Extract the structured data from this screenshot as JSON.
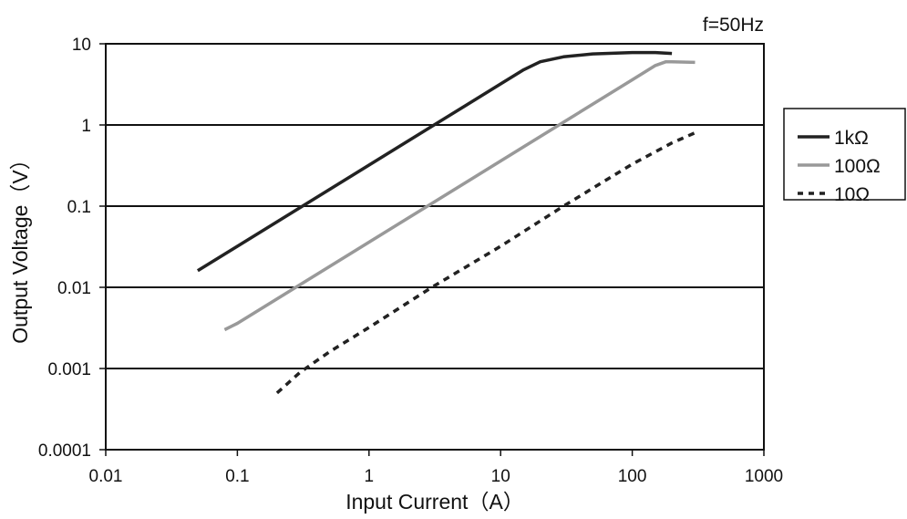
{
  "chart_data": {
    "type": "line",
    "annotation": "f=50Hz",
    "xlabel": "Input Current（A）",
    "ylabel": "Output Voltage（V）",
    "xscale": "log",
    "yscale": "log",
    "xlim": [
      0.01,
      1000
    ],
    "ylim": [
      0.0001,
      10
    ],
    "xticks": [
      "0.01",
      "0.1",
      "1",
      "10",
      "100",
      "1000"
    ],
    "yticks": [
      "0.0001",
      "0.001",
      "0.01",
      "0.1",
      "1",
      "10"
    ],
    "grid": "horizontal",
    "legend_position": "right",
    "series": [
      {
        "name": "1kΩ",
        "color": "#222222",
        "dash": "solid",
        "x": [
          0.05,
          0.1,
          1,
          10,
          15,
          20,
          30,
          50,
          100,
          150,
          200
        ],
        "y": [
          0.016,
          0.032,
          0.32,
          3.2,
          4.8,
          6.0,
          6.9,
          7.5,
          7.8,
          7.8,
          7.6
        ]
      },
      {
        "name": "100Ω",
        "color": "#999999",
        "dash": "solid",
        "x": [
          0.08,
          0.1,
          1,
          10,
          100,
          150,
          180,
          200,
          300
        ],
        "y": [
          0.003,
          0.0036,
          0.036,
          0.36,
          3.6,
          5.4,
          6.0,
          6.0,
          5.9
        ]
      },
      {
        "name": "10Ω",
        "color": "#222222",
        "dash": "dotted",
        "x": [
          0.2,
          0.3,
          0.5,
          1,
          3,
          10,
          30,
          100,
          200,
          300
        ],
        "y": [
          0.0005,
          0.0009,
          0.0016,
          0.0032,
          0.01,
          0.032,
          0.1,
          0.33,
          0.6,
          0.8
        ]
      }
    ]
  }
}
